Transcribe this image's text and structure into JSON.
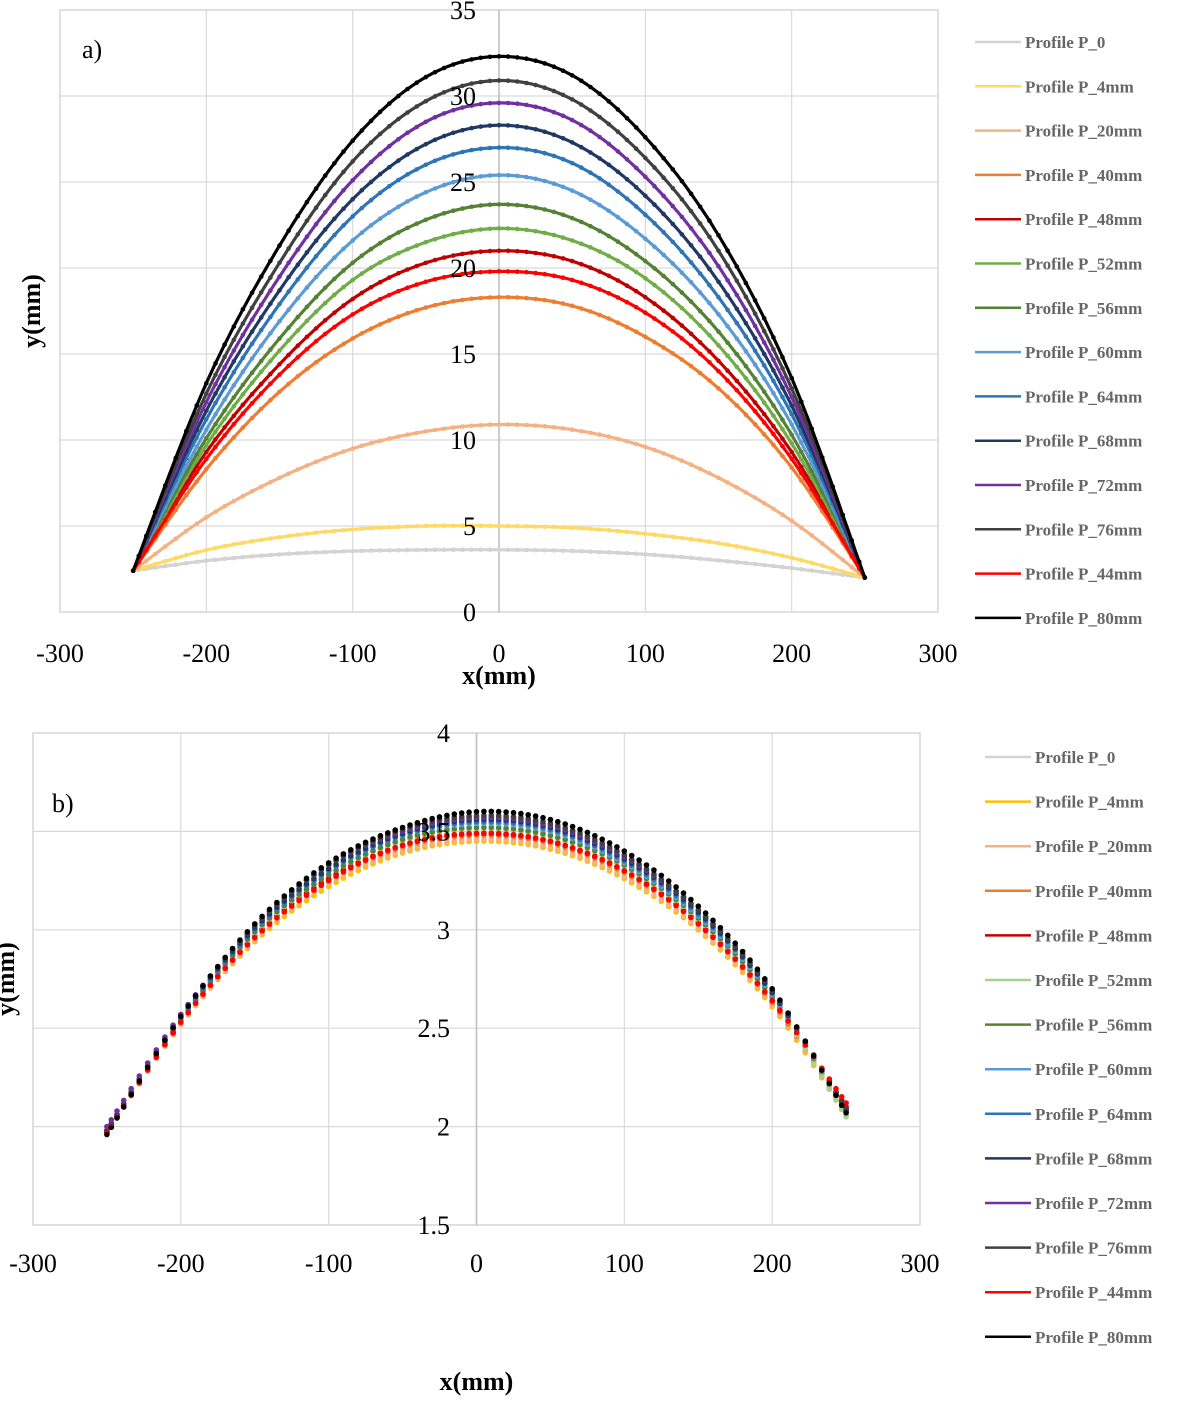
{
  "chart_data": [
    {
      "panel": "a)",
      "type": "line",
      "title": "",
      "xlabel": "x(mm)",
      "ylabel": "y(mm)",
      "xlim": [
        -300,
        300
      ],
      "ylim": [
        0,
        35
      ],
      "xticks": [
        -300,
        -200,
        -100,
        0,
        100,
        200,
        300
      ],
      "yticks": [
        0,
        5,
        10,
        15,
        20,
        25,
        30,
        35
      ],
      "grid": true,
      "legend_position": "right",
      "series": [
        {
          "name": "Profile P_0",
          "color": "#d3d3d3",
          "x": [
            -250,
            -200,
            -150,
            -100,
            -50,
            0,
            50,
            100,
            150,
            200,
            250
          ],
          "y": [
            2.4,
            2.98,
            3.35,
            3.54,
            3.61,
            3.62,
            3.55,
            3.35,
            3.0,
            2.55,
            2.0
          ]
        },
        {
          "name": "Profile P_4mm",
          "color": "#ffd966",
          "x": [
            -250,
            -200,
            -150,
            -100,
            -50,
            0,
            50,
            100,
            150,
            200,
            250
          ],
          "y": [
            2.4,
            3.6,
            4.35,
            4.8,
            5.0,
            5.0,
            4.9,
            4.55,
            4.0,
            3.15,
            2.0
          ]
        },
        {
          "name": "Profile P_20mm",
          "color": "#f4b183",
          "x": [
            -250,
            -200,
            -150,
            -100,
            -50,
            0,
            50,
            100,
            150,
            200,
            250
          ],
          "y": [
            2.4,
            5.5,
            7.8,
            9.5,
            10.5,
            10.9,
            10.6,
            9.6,
            7.8,
            5.3,
            2.0
          ]
        },
        {
          "name": "Profile P_40mm",
          "color": "#ed7d31",
          "x": [
            -250,
            -200,
            -150,
            -100,
            -50,
            0,
            50,
            100,
            150,
            200,
            250
          ],
          "y": [
            2.4,
            8.3,
            12.8,
            15.9,
            17.7,
            18.3,
            17.8,
            16.0,
            13.0,
            8.4,
            2.0
          ]
        },
        {
          "name": "Profile P_48mm",
          "color": "#c00000",
          "x": [
            -250,
            -200,
            -150,
            -100,
            -50,
            0,
            50,
            100,
            150,
            200,
            250
          ],
          "y": [
            2.4,
            9.3,
            14.4,
            18.2,
            20.3,
            21.0,
            20.4,
            18.3,
            14.6,
            9.3,
            2.0
          ]
        },
        {
          "name": "Profile P_52mm",
          "color": "#70ad47",
          "x": [
            -250,
            -200,
            -150,
            -100,
            -50,
            0,
            50,
            100,
            150,
            200,
            250
          ],
          "y": [
            2.4,
            9.7,
            15.2,
            19.3,
            21.5,
            22.3,
            21.6,
            19.4,
            15.5,
            9.8,
            2.0
          ]
        },
        {
          "name": "Profile P_56mm",
          "color": "#548235",
          "x": [
            -250,
            -200,
            -150,
            -100,
            -50,
            0,
            50,
            100,
            150,
            200,
            250
          ],
          "y": [
            2.4,
            10.1,
            15.9,
            20.3,
            22.8,
            23.7,
            22.9,
            20.4,
            16.3,
            10.3,
            2.0
          ]
        },
        {
          "name": "Profile P_60mm",
          "color": "#5b9bd5",
          "x": [
            -250,
            -200,
            -150,
            -100,
            -50,
            0,
            50,
            100,
            150,
            200,
            250
          ],
          "y": [
            2.4,
            10.6,
            16.9,
            21.6,
            24.4,
            25.4,
            24.5,
            21.7,
            17.3,
            10.9,
            2.0
          ]
        },
        {
          "name": "Profile P_64mm",
          "color": "#2e75b6",
          "x": [
            -250,
            -200,
            -150,
            -100,
            -50,
            0,
            50,
            100,
            150,
            200,
            250
          ],
          "y": [
            2.4,
            11.2,
            17.9,
            23.0,
            26.0,
            27.0,
            26.1,
            23.1,
            18.3,
            11.5,
            2.0
          ]
        },
        {
          "name": "Profile P_68mm",
          "color": "#1f3864",
          "x": [
            -250,
            -200,
            -150,
            -100,
            -50,
            0,
            50,
            100,
            150,
            200,
            250
          ],
          "y": [
            2.4,
            11.7,
            18.7,
            24.0,
            27.2,
            28.3,
            27.3,
            24.2,
            19.2,
            12.0,
            2.0
          ]
        },
        {
          "name": "Profile P_72mm",
          "color": "#7030a0",
          "x": [
            -250,
            -200,
            -150,
            -100,
            -50,
            0,
            50,
            100,
            150,
            200,
            250
          ],
          "y": [
            2.4,
            12.2,
            19.5,
            25.1,
            28.5,
            29.6,
            28.6,
            25.3,
            20.1,
            12.5,
            2.0
          ]
        },
        {
          "name": "Profile P_76mm",
          "color": "#404040",
          "x": [
            -250,
            -200,
            -150,
            -100,
            -50,
            0,
            50,
            100,
            150,
            200,
            250
          ],
          "y": [
            2.4,
            12.7,
            20.3,
            26.2,
            29.7,
            30.9,
            29.8,
            26.4,
            21.0,
            13.0,
            2.0
          ]
        },
        {
          "name": "Profile P_44mm",
          "color": "#ff0000",
          "x": [
            -250,
            -200,
            -150,
            -100,
            -50,
            0,
            50,
            100,
            150,
            200,
            250
          ],
          "y": [
            2.4,
            8.9,
            13.8,
            17.3,
            19.2,
            19.8,
            19.3,
            17.4,
            14.0,
            8.9,
            2.0
          ]
        },
        {
          "name": "Profile P_80mm",
          "color": "#000000",
          "x": [
            -250,
            -200,
            -150,
            -100,
            -50,
            0,
            50,
            100,
            150,
            200,
            250
          ],
          "y": [
            2.4,
            13.3,
            21.3,
            27.4,
            31.1,
            32.3,
            31.2,
            27.6,
            21.9,
            13.6,
            2.0
          ]
        }
      ]
    },
    {
      "panel": "b)",
      "type": "scatter",
      "title": "",
      "xlabel": "x(mm)",
      "ylabel": "y(mm)",
      "xlim": [
        -300,
        300
      ],
      "ylim": [
        1.5,
        4
      ],
      "xticks": [
        -300,
        -200,
        -100,
        0,
        100,
        200,
        300
      ],
      "yticks": [
        1.5,
        2,
        2.5,
        3,
        3.5,
        4
      ],
      "grid": true,
      "legend_position": "right",
      "series": [
        {
          "name": "Profile P_0",
          "color": "#d3d3d3",
          "x": [
            -250,
            -200,
            -150,
            -100,
            -50,
            0,
            50,
            100,
            150,
            200,
            250
          ],
          "y": [
            1.97,
            2.52,
            2.94,
            3.22,
            3.39,
            3.45,
            3.41,
            3.26,
            3.0,
            2.61,
            2.06
          ]
        },
        {
          "name": "Profile P_4mm",
          "color": "#ffc000",
          "x": [
            -250,
            -200,
            -150,
            -100,
            -50,
            0,
            50,
            100,
            150,
            200,
            250
          ],
          "y": [
            1.97,
            2.52,
            2.94,
            3.22,
            3.39,
            3.45,
            3.41,
            3.26,
            3.0,
            2.61,
            2.06
          ]
        },
        {
          "name": "Profile P_20mm",
          "color": "#f4b183",
          "x": [
            -250,
            -200,
            -150,
            -100,
            -50,
            0,
            50,
            100,
            150,
            200,
            250
          ],
          "y": [
            1.97,
            2.52,
            2.95,
            3.24,
            3.4,
            3.46,
            3.42,
            3.27,
            3.01,
            2.62,
            2.07
          ]
        },
        {
          "name": "Profile P_40mm",
          "color": "#ed7d31",
          "x": [
            -250,
            -200,
            -150,
            -100,
            -50,
            0,
            50,
            100,
            150,
            200,
            250
          ],
          "y": [
            1.97,
            2.53,
            2.96,
            3.25,
            3.42,
            3.48,
            3.44,
            3.29,
            3.03,
            2.63,
            2.08
          ]
        },
        {
          "name": "Profile P_48mm",
          "color": "#c00000",
          "x": [
            -250,
            -200,
            -150,
            -100,
            -50,
            0,
            50,
            100,
            150,
            200,
            250
          ],
          "y": [
            1.97,
            2.53,
            2.97,
            3.26,
            3.43,
            3.49,
            3.45,
            3.3,
            3.04,
            2.64,
            2.1
          ]
        },
        {
          "name": "Profile P_52mm",
          "color": "#a9d18e",
          "x": [
            -250,
            -200,
            -150,
            -100,
            -50,
            0,
            50,
            100,
            150,
            200,
            250
          ],
          "y": [
            1.97,
            2.54,
            2.98,
            3.28,
            3.45,
            3.51,
            3.47,
            3.32,
            3.05,
            2.65,
            2.05
          ]
        },
        {
          "name": "Profile P_56mm",
          "color": "#548235",
          "x": [
            -250,
            -200,
            -150,
            -100,
            -50,
            0,
            50,
            100,
            150,
            200,
            250
          ],
          "y": [
            1.97,
            2.54,
            2.99,
            3.28,
            3.46,
            3.52,
            3.48,
            3.33,
            3.06,
            2.66,
            2.08
          ]
        },
        {
          "name": "Profile P_60mm",
          "color": "#5b9bd5",
          "x": [
            -250,
            -200,
            -150,
            -100,
            -50,
            0,
            50,
            100,
            150,
            200,
            250
          ],
          "y": [
            1.98,
            2.55,
            3.0,
            3.3,
            3.48,
            3.54,
            3.5,
            3.34,
            3.07,
            2.67,
            2.08
          ]
        },
        {
          "name": "Profile P_64mm",
          "color": "#2e75b6",
          "x": [
            -250,
            -200,
            -150,
            -100,
            -50,
            0,
            50,
            100,
            150,
            200,
            250
          ],
          "y": [
            1.98,
            2.55,
            3.0,
            3.3,
            3.48,
            3.55,
            3.51,
            3.35,
            3.08,
            2.68,
            2.09
          ]
        },
        {
          "name": "Profile P_68mm",
          "color": "#1f3864",
          "x": [
            -250,
            -200,
            -150,
            -100,
            -50,
            0,
            50,
            100,
            150,
            200,
            250
          ],
          "y": [
            1.98,
            2.56,
            3.01,
            3.31,
            3.49,
            3.56,
            3.52,
            3.36,
            3.09,
            2.68,
            2.09
          ]
        },
        {
          "name": "Profile P_72mm",
          "color": "#7030a0",
          "x": [
            -250,
            -200,
            -150,
            -100,
            -50,
            0,
            50,
            100,
            150,
            200,
            250
          ],
          "y": [
            2.0,
            2.57,
            3.02,
            3.33,
            3.5,
            3.57,
            3.53,
            3.37,
            3.1,
            2.69,
            2.08
          ]
        },
        {
          "name": "Profile P_76mm",
          "color": "#404040",
          "x": [
            -250,
            -200,
            -150,
            -100,
            -50,
            0,
            50,
            100,
            150,
            200,
            250
          ],
          "y": [
            1.97,
            2.56,
            3.02,
            3.33,
            3.51,
            3.58,
            3.54,
            3.38,
            3.1,
            2.69,
            2.09
          ]
        },
        {
          "name": "Profile P_44mm",
          "color": "#ff0000",
          "x": [
            -250,
            -200,
            -150,
            -100,
            -50,
            0,
            50,
            100,
            150,
            200,
            250
          ],
          "y": [
            1.97,
            2.53,
            2.96,
            3.25,
            3.43,
            3.49,
            3.45,
            3.3,
            3.03,
            2.64,
            2.12
          ]
        },
        {
          "name": "Profile P_80mm",
          "color": "#000000",
          "x": [
            -250,
            -200,
            -150,
            -100,
            -50,
            0,
            50,
            100,
            150,
            200,
            250
          ],
          "y": [
            1.96,
            2.56,
            3.03,
            3.34,
            3.52,
            3.6,
            3.56,
            3.4,
            3.12,
            2.7,
            2.07
          ]
        }
      ]
    }
  ]
}
